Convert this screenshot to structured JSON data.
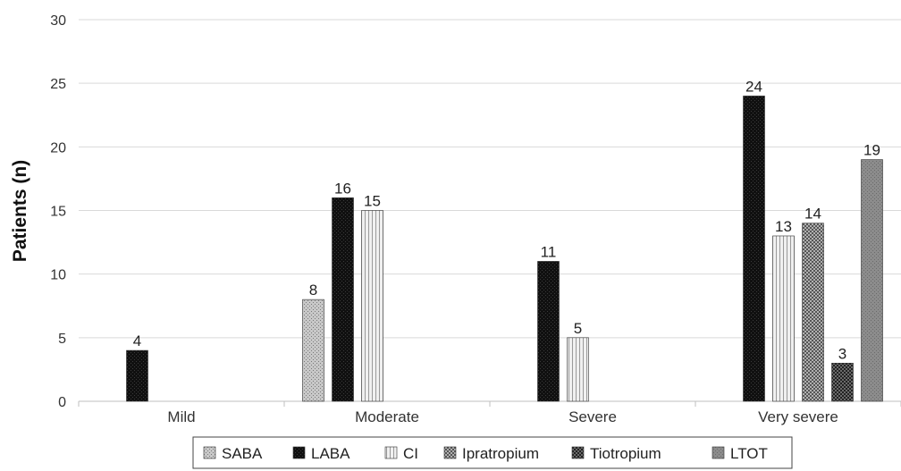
{
  "chart_data": {
    "type": "bar",
    "categories": [
      "Mild",
      "Moderate",
      "Severe",
      "Very severe"
    ],
    "series": [
      {
        "name": "SABA",
        "values": [
          null,
          8,
          null,
          null
        ]
      },
      {
        "name": "LABA",
        "values": [
          4,
          16,
          11,
          24
        ]
      },
      {
        "name": "CI",
        "values": [
          null,
          15,
          5,
          13
        ]
      },
      {
        "name": "Ipratropium",
        "values": [
          null,
          null,
          null,
          14
        ]
      },
      {
        "name": "Tiotropium",
        "values": [
          null,
          null,
          null,
          3
        ]
      },
      {
        "name": "LTOT",
        "values": [
          null,
          null,
          null,
          19
        ]
      }
    ],
    "title": "",
    "xlabel": "",
    "ylabel": "Patients (n)",
    "ylim": [
      0,
      30
    ],
    "yticks": [
      0,
      5,
      10,
      15,
      20,
      25,
      30
    ],
    "grid": true,
    "legend_position": "bottom"
  },
  "colors": {
    "SABA": "#a8a8a8",
    "LABA": "#141414",
    "CI": "#d2d2d2",
    "Ipratropium": "#8a8a8a",
    "Tiotropium": "#4a4a4a",
    "LTOT": "#7a7a7a",
    "grid": "#d9d9d9",
    "axis": "#bfbfbf"
  }
}
